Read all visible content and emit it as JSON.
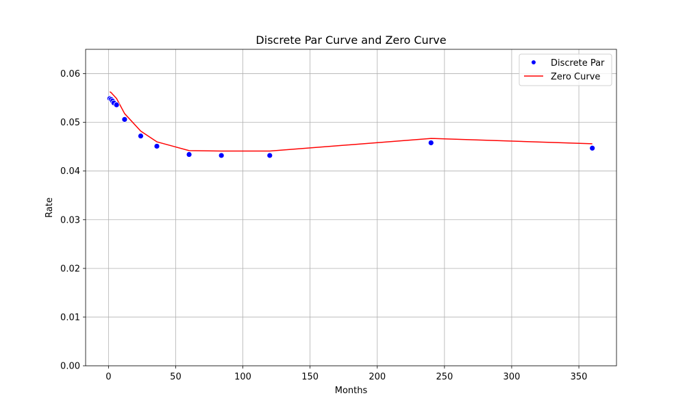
{
  "chart_data": {
    "type": "line",
    "title": "Discrete Par Curve and Zero Curve",
    "xlabel": "Months",
    "ylabel": "Rate",
    "xlim": [
      -17,
      378
    ],
    "ylim": [
      0.0,
      0.065
    ],
    "xticks": [
      "0",
      "50",
      "100",
      "150",
      "200",
      "250",
      "300",
      "350"
    ],
    "xtick_values": [
      0,
      50,
      100,
      150,
      200,
      250,
      300,
      350
    ],
    "yticks": [
      "0.00",
      "0.01",
      "0.02",
      "0.03",
      "0.04",
      "0.05",
      "0.06"
    ],
    "ytick_values": [
      0.0,
      0.01,
      0.02,
      0.03,
      0.04,
      0.05,
      0.06
    ],
    "grid": true,
    "legend_position": "top-right",
    "series": [
      {
        "name": "Discrete Par",
        "kind": "scatter",
        "color": "#0000ff",
        "x": [
          1,
          2,
          3,
          4,
          6,
          12,
          24,
          36,
          60,
          84,
          120,
          240,
          360
        ],
        "y": [
          0.0549,
          0.0547,
          0.0544,
          0.054,
          0.0536,
          0.0506,
          0.0472,
          0.0451,
          0.0434,
          0.0432,
          0.0432,
          0.0458,
          0.0447
        ]
      },
      {
        "name": "Zero Curve",
        "kind": "line",
        "color": "#ff0000",
        "x": [
          1,
          2,
          3,
          4,
          6,
          12,
          24,
          36,
          60,
          84,
          120,
          240,
          360
        ],
        "y": [
          0.0563,
          0.0561,
          0.0558,
          0.0555,
          0.0549,
          0.0518,
          0.0482,
          0.046,
          0.0442,
          0.0441,
          0.0441,
          0.0467,
          0.0456
        ]
      }
    ]
  }
}
